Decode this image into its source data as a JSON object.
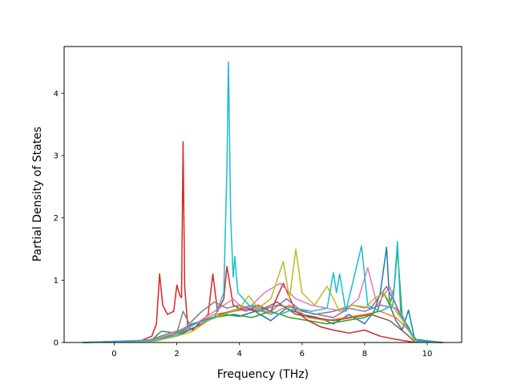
{
  "chart_data": {
    "type": "line",
    "title": "",
    "xlabel": "Frequency (THz)",
    "ylabel": "Partial Density of States",
    "xlim": [
      -1.6,
      11.1
    ],
    "ylim": [
      0,
      4.75
    ],
    "xticks": [
      0,
      2,
      4,
      6,
      8,
      10
    ],
    "yticks": [
      0,
      1,
      2,
      3,
      4
    ],
    "grid": false,
    "legend": "none",
    "series": [
      {
        "color": "#1f77b4",
        "points": [
          [
            -1,
            0
          ],
          [
            0.5,
            0.01
          ],
          [
            1.2,
            0.05
          ],
          [
            1.6,
            0.12
          ],
          [
            2.1,
            0.2
          ],
          [
            2.5,
            0.3
          ],
          [
            3,
            0.38
          ],
          [
            3.5,
            0.45
          ],
          [
            4,
            0.42
          ],
          [
            4.5,
            0.5
          ],
          [
            5,
            0.35
          ],
          [
            5.5,
            0.55
          ],
          [
            6,
            0.45
          ],
          [
            6.5,
            0.4
          ],
          [
            7,
            0.3
          ],
          [
            7.5,
            0.45
          ],
          [
            8,
            0.3
          ],
          [
            8.3,
            0.5
          ],
          [
            8.5,
            0.8
          ],
          [
            8.7,
            1.53
          ],
          [
            8.8,
            0.6
          ],
          [
            9,
            0.35
          ],
          [
            9.2,
            0.2
          ],
          [
            9.4,
            0.52
          ],
          [
            9.6,
            0.05
          ],
          [
            10.5,
            0
          ]
        ]
      },
      {
        "color": "#ff7f0e",
        "points": [
          [
            -1,
            0
          ],
          [
            1.2,
            0.03
          ],
          [
            2,
            0.15
          ],
          [
            2.6,
            0.3
          ],
          [
            3.2,
            0.45
          ],
          [
            3.8,
            0.5
          ],
          [
            4.4,
            0.55
          ],
          [
            5,
            0.45
          ],
          [
            5.6,
            0.6
          ],
          [
            6.2,
            0.4
          ],
          [
            6.8,
            0.35
          ],
          [
            7.4,
            0.4
          ],
          [
            8,
            0.45
          ],
          [
            8.5,
            0.5
          ],
          [
            9,
            0.4
          ],
          [
            9.4,
            0.2
          ],
          [
            9.7,
            0.02
          ],
          [
            10.5,
            0
          ]
        ]
      },
      {
        "color": "#2ca02c",
        "points": [
          [
            -1,
            0
          ],
          [
            1.2,
            0.04
          ],
          [
            1.5,
            0.18
          ],
          [
            2,
            0.15
          ],
          [
            2.6,
            0.3
          ],
          [
            3.2,
            0.4
          ],
          [
            3.8,
            0.45
          ],
          [
            4.4,
            0.4
          ],
          [
            5,
            0.5
          ],
          [
            5.6,
            0.4
          ],
          [
            6.2,
            0.35
          ],
          [
            6.8,
            0.3
          ],
          [
            7.4,
            0.35
          ],
          [
            8,
            0.4
          ],
          [
            8.4,
            0.5
          ],
          [
            8.6,
            0.8
          ],
          [
            8.8,
            0.6
          ],
          [
            8.95,
            0.9
          ],
          [
            9.05,
            1.5
          ],
          [
            9.2,
            0.4
          ],
          [
            9.4,
            0.25
          ],
          [
            9.6,
            0.03
          ],
          [
            10.5,
            0
          ]
        ]
      },
      {
        "color": "#d62728",
        "points": [
          [
            -1,
            0
          ],
          [
            0.8,
            0.02
          ],
          [
            1.2,
            0.1
          ],
          [
            1.35,
            0.3
          ],
          [
            1.45,
            1.1
          ],
          [
            1.55,
            0.6
          ],
          [
            1.7,
            0.45
          ],
          [
            1.9,
            0.5
          ],
          [
            2.0,
            0.92
          ],
          [
            2.1,
            0.75
          ],
          [
            2.15,
            0.72
          ],
          [
            2.2,
            3.22
          ],
          [
            2.25,
            0.9
          ],
          [
            2.35,
            0.25
          ],
          [
            2.5,
            0.2
          ],
          [
            2.7,
            0.3
          ],
          [
            3.0,
            0.45
          ],
          [
            3.15,
            1.1
          ],
          [
            3.3,
            0.5
          ],
          [
            3.5,
            0.7
          ],
          [
            3.6,
            1.22
          ],
          [
            3.8,
            0.6
          ],
          [
            4.2,
            0.5
          ],
          [
            4.6,
            0.6
          ],
          [
            5,
            0.5
          ],
          [
            5.4,
            0.95
          ],
          [
            5.8,
            0.5
          ],
          [
            6.2,
            0.35
          ],
          [
            6.6,
            0.25
          ],
          [
            7,
            0.2
          ],
          [
            7.5,
            0.15
          ],
          [
            8,
            0.2
          ],
          [
            8.5,
            0.1
          ],
          [
            9,
            0.05
          ],
          [
            9.5,
            0.01
          ],
          [
            10.5,
            0
          ]
        ]
      },
      {
        "color": "#9467bd",
        "points": [
          [
            -1,
            0
          ],
          [
            1.3,
            0.03
          ],
          [
            2,
            0.12
          ],
          [
            2.6,
            0.25
          ],
          [
            3.2,
            0.4
          ],
          [
            3.8,
            0.5
          ],
          [
            4.4,
            0.6
          ],
          [
            5,
            0.5
          ],
          [
            5.5,
            0.7
          ],
          [
            6,
            0.5
          ],
          [
            6.5,
            0.45
          ],
          [
            7,
            0.4
          ],
          [
            7.5,
            0.55
          ],
          [
            8,
            0.5
          ],
          [
            8.5,
            0.6
          ],
          [
            9,
            0.55
          ],
          [
            9.3,
            0.3
          ],
          [
            9.6,
            0.02
          ],
          [
            10.5,
            0
          ]
        ]
      },
      {
        "color": "#8c564b",
        "points": [
          [
            -1,
            0
          ],
          [
            1.4,
            0.03
          ],
          [
            2.2,
            0.15
          ],
          [
            2.8,
            0.3
          ],
          [
            3.4,
            0.45
          ],
          [
            4,
            0.55
          ],
          [
            4.6,
            0.5
          ],
          [
            5.2,
            0.65
          ],
          [
            5.8,
            0.45
          ],
          [
            6.4,
            0.4
          ],
          [
            7,
            0.35
          ],
          [
            7.6,
            0.4
          ],
          [
            8.2,
            0.45
          ],
          [
            8.8,
            0.35
          ],
          [
            9.3,
            0.15
          ],
          [
            9.6,
            0.01
          ],
          [
            10.5,
            0
          ]
        ]
      },
      {
        "color": "#e377c2",
        "points": [
          [
            -1,
            0
          ],
          [
            1.2,
            0.04
          ],
          [
            2,
            0.18
          ],
          [
            2.6,
            0.3
          ],
          [
            3.2,
            0.5
          ],
          [
            3.8,
            0.7
          ],
          [
            4.2,
            0.5
          ],
          [
            4.8,
            0.8
          ],
          [
            5.3,
            0.95
          ],
          [
            5.8,
            0.7
          ],
          [
            6.3,
            0.6
          ],
          [
            6.8,
            0.55
          ],
          [
            7.3,
            0.5
          ],
          [
            7.8,
            0.7
          ],
          [
            8.1,
            1.2
          ],
          [
            8.4,
            0.6
          ],
          [
            8.8,
            0.9
          ],
          [
            9.1,
            0.45
          ],
          [
            9.4,
            0.2
          ],
          [
            9.7,
            0.02
          ],
          [
            10.5,
            0
          ]
        ]
      },
      {
        "color": "#7f7f7f",
        "points": [
          [
            -1,
            0
          ],
          [
            1.3,
            0.03
          ],
          [
            2,
            0.15
          ],
          [
            2.2,
            0.5
          ],
          [
            2.4,
            0.3
          ],
          [
            2.8,
            0.5
          ],
          [
            3.2,
            0.65
          ],
          [
            3.6,
            0.55
          ],
          [
            4,
            0.6
          ],
          [
            4.6,
            0.5
          ],
          [
            5.2,
            0.6
          ],
          [
            5.8,
            0.55
          ],
          [
            6.4,
            0.45
          ],
          [
            7,
            0.5
          ],
          [
            7.6,
            0.6
          ],
          [
            8.2,
            0.55
          ],
          [
            8.7,
            0.9
          ],
          [
            9,
            0.6
          ],
          [
            9.3,
            0.3
          ],
          [
            9.6,
            0.02
          ],
          [
            10.5,
            0
          ]
        ]
      },
      {
        "color": "#bcbd22",
        "points": [
          [
            -1,
            0
          ],
          [
            1.3,
            0.02
          ],
          [
            2,
            0.1
          ],
          [
            2.5,
            0.18
          ],
          [
            3,
            0.35
          ],
          [
            3.5,
            0.45
          ],
          [
            4,
            0.55
          ],
          [
            4.3,
            0.75
          ],
          [
            4.6,
            0.55
          ],
          [
            5,
            0.7
          ],
          [
            5.4,
            1.3
          ],
          [
            5.6,
            0.7
          ],
          [
            5.8,
            1.5
          ],
          [
            6,
            0.8
          ],
          [
            6.4,
            0.6
          ],
          [
            6.8,
            0.9
          ],
          [
            7.2,
            0.5
          ],
          [
            7.6,
            0.6
          ],
          [
            8,
            0.55
          ],
          [
            8.3,
            0.7
          ],
          [
            8.6,
            0.8
          ],
          [
            9,
            0.5
          ],
          [
            9.3,
            0.3
          ],
          [
            9.6,
            0.02
          ],
          [
            10.5,
            0
          ]
        ]
      },
      {
        "color": "#17becf",
        "points": [
          [
            -1,
            0
          ],
          [
            1.2,
            0.03
          ],
          [
            2,
            0.12
          ],
          [
            2.6,
            0.3
          ],
          [
            3.2,
            0.4
          ],
          [
            3.5,
            0.8
          ],
          [
            3.6,
            2.8
          ],
          [
            3.65,
            4.5
          ],
          [
            3.72,
            2.0
          ],
          [
            3.8,
            1.05
          ],
          [
            3.85,
            1.38
          ],
          [
            3.95,
            0.8
          ],
          [
            4.3,
            0.6
          ],
          [
            4.8,
            0.5
          ],
          [
            5.3,
            0.45
          ],
          [
            5.8,
            0.55
          ],
          [
            6.3,
            0.5
          ],
          [
            6.8,
            0.55
          ],
          [
            7.0,
            1.12
          ],
          [
            7.1,
            0.8
          ],
          [
            7.2,
            1.1
          ],
          [
            7.4,
            0.5
          ],
          [
            7.9,
            1.55
          ],
          [
            8.1,
            0.6
          ],
          [
            8.5,
            0.5
          ],
          [
            8.9,
            0.6
          ],
          [
            9.05,
            1.62
          ],
          [
            9.15,
            0.5
          ],
          [
            9.4,
            0.2
          ],
          [
            9.7,
            0.02
          ],
          [
            10.5,
            0
          ]
        ]
      }
    ]
  }
}
